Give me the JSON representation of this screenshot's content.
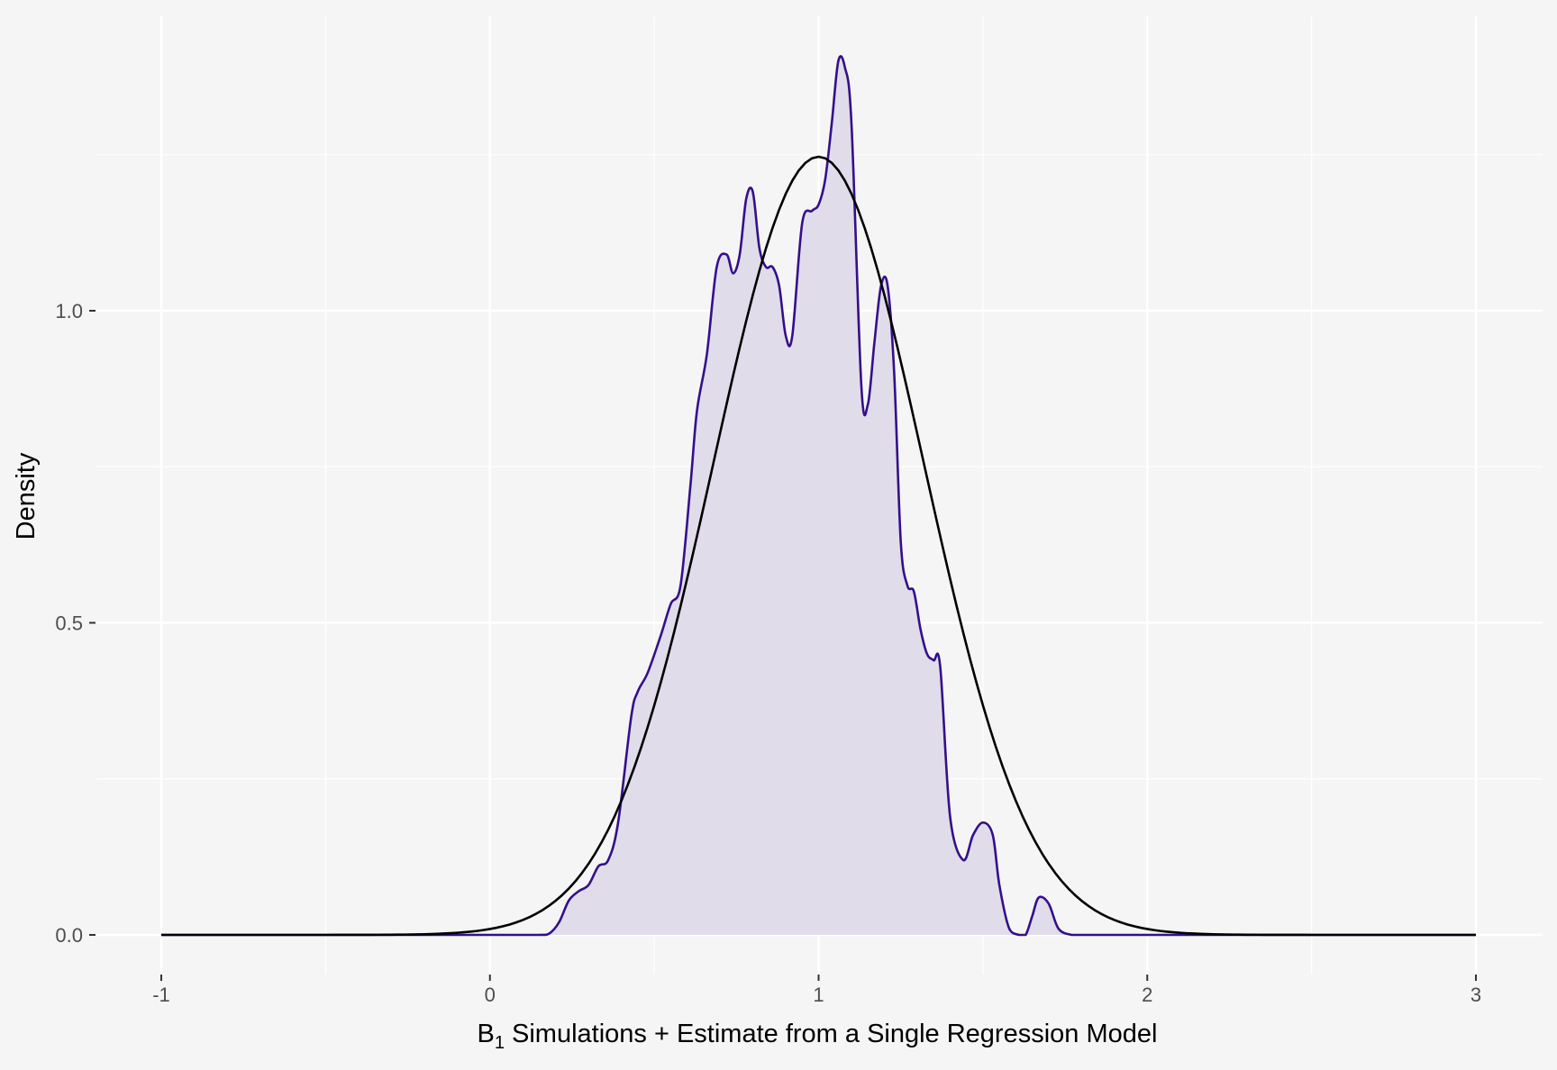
{
  "chart_data": {
    "type": "area",
    "title": "",
    "xlabel": "Simulations + Estimate from a Single Regression Model",
    "xlabel_symbol": "B",
    "xlabel_subscript": "1",
    "ylabel": "Density",
    "xlim": [
      -1,
      3
    ],
    "ylim": [
      0,
      1.4
    ],
    "x_ticks": [
      -1,
      0,
      1,
      2,
      3
    ],
    "x_tick_labels": [
      "-1",
      "0",
      "1",
      "2",
      "3"
    ],
    "y_ticks": [
      0,
      0.5,
      1
    ],
    "y_tick_labels": [
      "0.0",
      "0.5",
      "1.0"
    ],
    "grid": true,
    "legend": "none",
    "colors": {
      "background": "#f5f5f5",
      "grid": "#ffffff",
      "density_fill": "#e0dcea",
      "density_line": "#34108a",
      "normal_line": "#000000"
    },
    "series": [
      {
        "kind": "density-area",
        "x": [
          -1.0,
          0.0,
          0.15,
          0.18,
          0.21,
          0.24,
          0.27,
          0.3,
          0.33,
          0.36,
          0.39,
          0.43,
          0.45,
          0.48,
          0.52,
          0.55,
          0.58,
          0.61,
          0.63,
          0.66,
          0.69,
          0.72,
          0.74,
          0.76,
          0.78,
          0.8,
          0.82,
          0.84,
          0.86,
          0.88,
          0.9,
          0.92,
          0.95,
          0.98,
          1.0,
          1.02,
          1.04,
          1.06,
          1.08,
          1.1,
          1.13,
          1.15,
          1.17,
          1.19,
          1.21,
          1.23,
          1.25,
          1.27,
          1.29,
          1.31,
          1.33,
          1.35,
          1.37,
          1.4,
          1.44,
          1.47,
          1.5,
          1.53,
          1.55,
          1.58,
          1.61,
          1.63,
          1.65,
          1.67,
          1.7,
          1.73,
          1.77,
          1.8,
          1.95,
          1.98,
          2.0,
          2.02,
          2.04,
          2.07,
          2.1,
          3.0
        ],
        "y": [
          0.0,
          0.0,
          0.0,
          0.002,
          0.02,
          0.055,
          0.07,
          0.08,
          0.11,
          0.12,
          0.18,
          0.35,
          0.39,
          0.42,
          0.48,
          0.53,
          0.56,
          0.72,
          0.84,
          0.93,
          1.07,
          1.09,
          1.06,
          1.09,
          1.18,
          1.19,
          1.1,
          1.07,
          1.07,
          1.04,
          0.96,
          0.96,
          1.14,
          1.16,
          1.17,
          1.21,
          1.3,
          1.4,
          1.39,
          1.3,
          0.88,
          0.85,
          0.95,
          1.04,
          1.04,
          0.9,
          0.63,
          0.56,
          0.55,
          0.49,
          0.45,
          0.44,
          0.43,
          0.19,
          0.12,
          0.16,
          0.18,
          0.16,
          0.08,
          0.01,
          0.0,
          0.0,
          0.03,
          0.06,
          0.05,
          0.01,
          0.0,
          0.0,
          0.0,
          0.0,
          0.0,
          0.0,
          0.0,
          0.0,
          0.0,
          0.0
        ]
      },
      {
        "kind": "normal-curve",
        "mean": 1.0,
        "sd": 0.32,
        "x_range": [
          -1,
          3
        ]
      }
    ]
  }
}
